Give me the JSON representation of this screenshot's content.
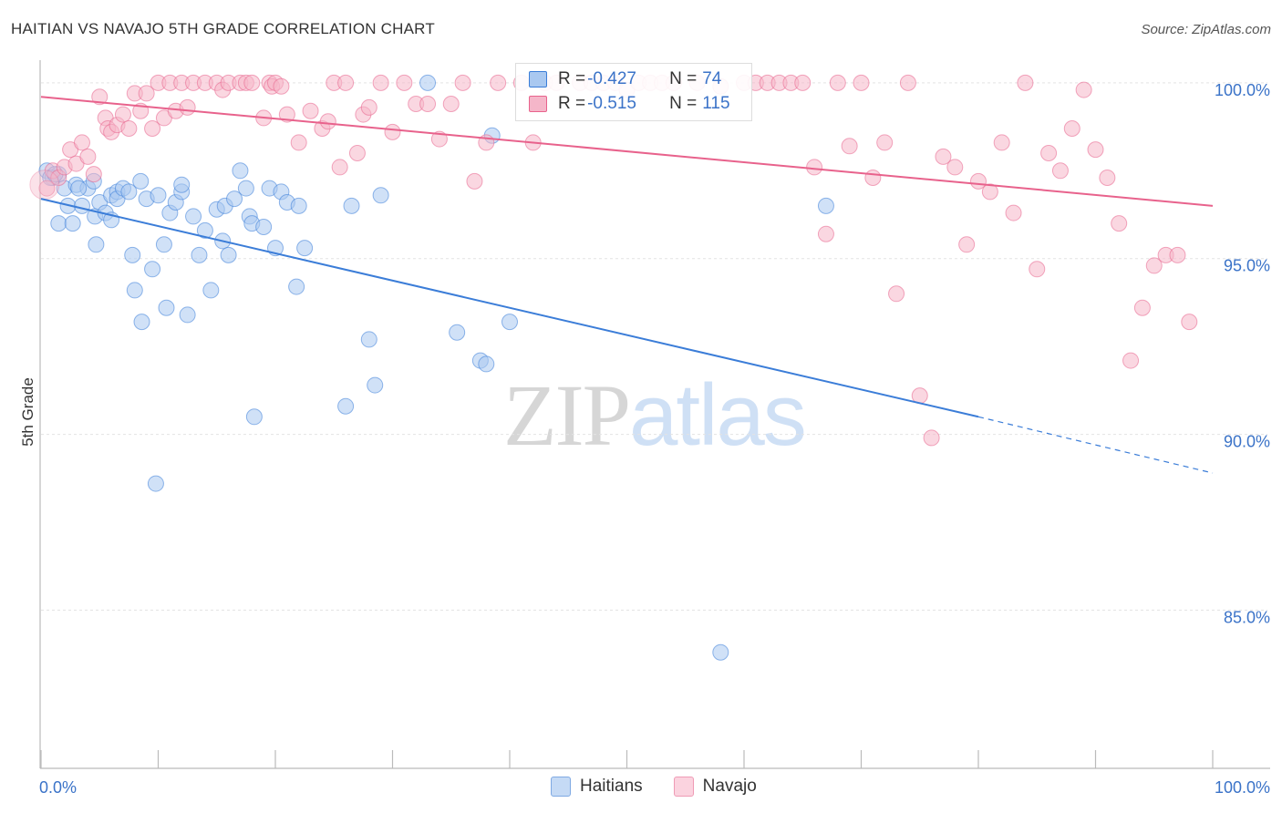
{
  "header": {
    "title": "HAITIAN VS NAVAJO 5TH GRADE CORRELATION CHART",
    "source": "Source: ZipAtlas.com"
  },
  "watermark": {
    "zip": "ZIP",
    "atlas": "atlas"
  },
  "legend": {
    "rows": [
      {
        "r_label": "R = ",
        "r_value": "-0.427",
        "n_label": "N = ",
        "n_value": "74",
        "color": "#a9c8f0"
      },
      {
        "r_label": "R = ",
        "r_value": "-0.515",
        "n_label": "N = ",
        "n_value": "115",
        "color": "#f5b6c9"
      }
    ]
  },
  "bottom_legend": {
    "haitians": "Haitians",
    "navajo": "Navajo"
  },
  "chart_data": {
    "type": "scatter",
    "title": "HAITIAN VS NAVAJO 5TH GRADE CORRELATION CHART",
    "ylabel": "5th Grade",
    "xlabel": "",
    "xlim": [
      0,
      100
    ],
    "ylim": [
      80.5,
      100.8
    ],
    "x_tick_labels": [
      "0.0%",
      "100.0%"
    ],
    "y_ticks": [
      {
        "value": 100,
        "label": "100.0%"
      },
      {
        "value": 95,
        "label": "95.0%"
      },
      {
        "value": 90,
        "label": "90.0%"
      },
      {
        "value": 85,
        "label": "85.0%"
      }
    ],
    "grid": true,
    "legend_position": "top-center",
    "series": [
      {
        "name": "Haitians",
        "color": "#3b7dd8",
        "fill": "#a9c8f0",
        "trend": {
          "x0": 0,
          "y0": 96.7,
          "x1": 80,
          "y1": 90.5,
          "dash_to_x": 100,
          "dash_to_y": 88.9
        },
        "points": [
          [
            0.5,
            97.5
          ],
          [
            1,
            97.3
          ],
          [
            1.5,
            97.4
          ],
          [
            1.5,
            96
          ],
          [
            2,
            97
          ],
          [
            2.3,
            96.5
          ],
          [
            2.7,
            96
          ],
          [
            3,
            97.1
          ],
          [
            3.5,
            96.5
          ],
          [
            4,
            97
          ],
          [
            4.5,
            97.2
          ],
          [
            4.6,
            96.2
          ],
          [
            4.7,
            95.4
          ],
          [
            5,
            96.6
          ],
          [
            5.5,
            96.3
          ],
          [
            6,
            96.8
          ],
          [
            6,
            96.1
          ],
          [
            6.5,
            96.9
          ],
          [
            6.5,
            96.7
          ],
          [
            7,
            97
          ],
          [
            7.5,
            96.9
          ],
          [
            7.8,
            95.1
          ],
          [
            8,
            94.1
          ],
          [
            8.5,
            97.2
          ],
          [
            8.6,
            93.2
          ],
          [
            9,
            96.7
          ],
          [
            9.5,
            94.7
          ],
          [
            9.8,
            88.6
          ],
          [
            10,
            96.8
          ],
          [
            10.5,
            95.4
          ],
          [
            10.7,
            93.6
          ],
          [
            11,
            96.3
          ],
          [
            11.5,
            96.6
          ],
          [
            12,
            96.9
          ],
          [
            12,
            97.1
          ],
          [
            12.5,
            93.4
          ],
          [
            13,
            96.2
          ],
          [
            13.5,
            95.1
          ],
          [
            14,
            95.8
          ],
          [
            14.5,
            94.1
          ],
          [
            15,
            96.4
          ],
          [
            15.5,
            95.5
          ],
          [
            15.7,
            96.5
          ],
          [
            16,
            95.1
          ],
          [
            16.5,
            96.7
          ],
          [
            17,
            97.5
          ],
          [
            17.5,
            97
          ],
          [
            17.8,
            96.2
          ],
          [
            18,
            96
          ],
          [
            18.2,
            90.5
          ],
          [
            19,
            95.9
          ],
          [
            19.5,
            97
          ],
          [
            20,
            95.3
          ],
          [
            20.5,
            96.9
          ],
          [
            21,
            96.6
          ],
          [
            21.8,
            94.2
          ],
          [
            22,
            96.5
          ],
          [
            22.5,
            95.3
          ],
          [
            26,
            90.8
          ],
          [
            26.5,
            96.5
          ],
          [
            28,
            92.7
          ],
          [
            28.5,
            91.4
          ],
          [
            29,
            96.8
          ],
          [
            33,
            100
          ],
          [
            35.5,
            92.9
          ],
          [
            37.5,
            92.1
          ],
          [
            38,
            92
          ],
          [
            38.5,
            98.5
          ],
          [
            40,
            93.2
          ],
          [
            58,
            83.8
          ],
          [
            67,
            96.5
          ],
          [
            0.8,
            97.3
          ],
          [
            1.2,
            97.4
          ],
          [
            3.2,
            97
          ]
        ]
      },
      {
        "name": "Navajo",
        "color": "#e8628c",
        "fill": "#f5b6c9",
        "trend": {
          "x0": 0,
          "y0": 99.6,
          "x1": 100,
          "y1": 96.5
        },
        "points": [
          [
            0.5,
            97
          ],
          [
            1,
            97.5
          ],
          [
            1.5,
            97.3
          ],
          [
            2,
            97.6
          ],
          [
            2.5,
            98.1
          ],
          [
            3,
            97.7
          ],
          [
            3.5,
            98.3
          ],
          [
            4,
            97.9
          ],
          [
            4.5,
            97.4
          ],
          [
            5,
            99.6
          ],
          [
            5.5,
            99
          ],
          [
            5.7,
            98.7
          ],
          [
            6,
            98.6
          ],
          [
            6.5,
            98.8
          ],
          [
            7,
            99.1
          ],
          [
            7.5,
            98.7
          ],
          [
            8,
            99.7
          ],
          [
            8.5,
            99.2
          ],
          [
            9,
            99.7
          ],
          [
            9.5,
            98.7
          ],
          [
            10,
            100
          ],
          [
            10.5,
            99
          ],
          [
            11,
            100
          ],
          [
            11.5,
            99.2
          ],
          [
            12,
            100
          ],
          [
            12.5,
            99.3
          ],
          [
            13,
            100
          ],
          [
            14,
            100
          ],
          [
            15,
            100
          ],
          [
            15.5,
            99.8
          ],
          [
            16,
            100
          ],
          [
            17,
            100
          ],
          [
            17.5,
            100
          ],
          [
            18,
            100
          ],
          [
            19,
            99
          ],
          [
            19.5,
            100
          ],
          [
            19.7,
            99.9
          ],
          [
            20,
            100
          ],
          [
            20.5,
            99.9
          ],
          [
            21,
            99.1
          ],
          [
            22,
            98.3
          ],
          [
            23,
            99.2
          ],
          [
            24,
            98.7
          ],
          [
            24.5,
            98.9
          ],
          [
            25,
            100
          ],
          [
            25.5,
            97.6
          ],
          [
            26,
            100
          ],
          [
            27,
            98
          ],
          [
            27.5,
            99.1
          ],
          [
            28,
            99.3
          ],
          [
            29,
            100
          ],
          [
            30,
            98.6
          ],
          [
            31,
            100
          ],
          [
            32,
            99.4
          ],
          [
            33,
            99.4
          ],
          [
            34,
            98.4
          ],
          [
            35,
            99.4
          ],
          [
            36,
            100
          ],
          [
            37,
            97.2
          ],
          [
            38,
            98.3
          ],
          [
            39,
            100
          ],
          [
            41,
            100
          ],
          [
            42,
            98.3
          ],
          [
            43,
            100
          ],
          [
            44,
            100
          ],
          [
            46,
            100
          ],
          [
            47,
            100
          ],
          [
            48,
            100
          ],
          [
            49,
            100
          ],
          [
            50,
            99.8
          ],
          [
            51,
            100
          ],
          [
            52,
            100
          ],
          [
            53,
            100
          ],
          [
            54,
            100
          ],
          [
            56,
            100
          ],
          [
            58,
            99.9
          ],
          [
            60,
            100
          ],
          [
            61,
            100
          ],
          [
            62,
            100
          ],
          [
            63,
            100
          ],
          [
            64,
            100
          ],
          [
            65,
            100
          ],
          [
            66,
            97.6
          ],
          [
            67,
            95.7
          ],
          [
            68,
            100
          ],
          [
            69,
            98.2
          ],
          [
            70,
            100
          ],
          [
            71,
            97.3
          ],
          [
            72,
            98.3
          ],
          [
            73,
            94
          ],
          [
            74,
            100
          ],
          [
            75,
            91.1
          ],
          [
            76,
            89.9
          ],
          [
            77,
            97.9
          ],
          [
            78,
            97.6
          ],
          [
            79,
            95.4
          ],
          [
            80,
            97.2
          ],
          [
            81,
            96.9
          ],
          [
            82,
            98.3
          ],
          [
            83,
            96.3
          ],
          [
            84,
            100
          ],
          [
            85,
            94.7
          ],
          [
            86,
            98
          ],
          [
            87,
            97.5
          ],
          [
            88,
            98.7
          ],
          [
            89,
            99.8
          ],
          [
            90,
            98.1
          ],
          [
            91,
            97.3
          ],
          [
            92,
            96
          ],
          [
            93,
            92.1
          ],
          [
            94,
            93.6
          ],
          [
            95,
            94.8
          ],
          [
            96,
            95.1
          ],
          [
            97,
            95.1
          ],
          [
            98,
            93.2
          ]
        ]
      }
    ]
  }
}
